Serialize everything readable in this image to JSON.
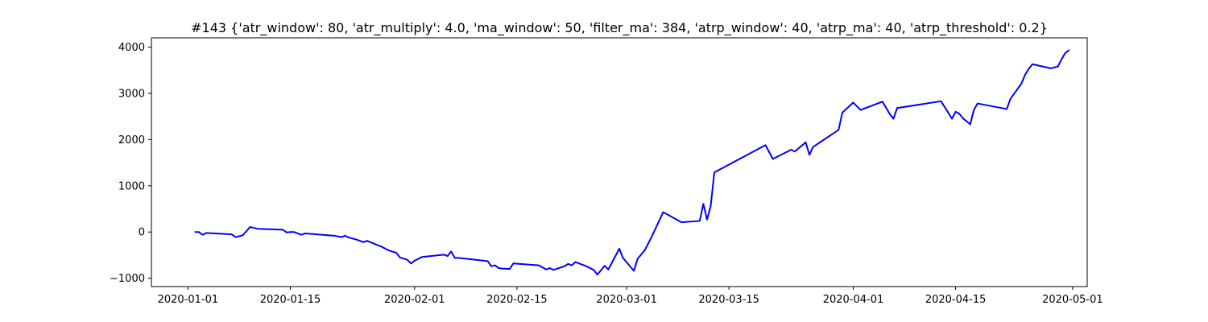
{
  "chart_data": {
    "type": "line",
    "title": "#143 {'atr_window': 80, 'atr_multiply': 4.0, 'ma_window': 50, 'filter_ma': 384, 'atrp_window': 40, 'atrp_ma': 40, 'atrp_threshold': 0.2}",
    "xlabel": "",
    "ylabel": "",
    "x_type": "date",
    "xlim": [
      "2019-12-27",
      "2020-05-03"
    ],
    "ylim": [
      -1180,
      4200
    ],
    "grid": false,
    "legend": "none",
    "x_ticks": [
      "2020-01-01",
      "2020-01-15",
      "2020-02-01",
      "2020-02-15",
      "2020-03-01",
      "2020-03-15",
      "2020-04-01",
      "2020-04-15",
      "2020-05-01"
    ],
    "y_ticks": [
      -1000,
      0,
      1000,
      2000,
      3000,
      4000
    ],
    "series": [
      {
        "color": "#0000ff",
        "points": [
          [
            "2020-01-02",
            0
          ],
          [
            "2020-01-02T12:00",
            0
          ],
          [
            "2020-01-03",
            -60
          ],
          [
            "2020-01-03T12:00",
            -20
          ],
          [
            "2020-01-07",
            -50
          ],
          [
            "2020-01-07T12:00",
            -110
          ],
          [
            "2020-01-08T12:00",
            -70
          ],
          [
            "2020-01-09T12:00",
            110
          ],
          [
            "2020-01-10T12:00",
            70
          ],
          [
            "2020-01-14",
            50
          ],
          [
            "2020-01-14T12:00",
            -10
          ],
          [
            "2020-01-15",
            0
          ],
          [
            "2020-01-15T12:00",
            0
          ],
          [
            "2020-01-16T12:00",
            -60
          ],
          [
            "2020-01-17",
            -30
          ],
          [
            "2020-01-21",
            -80
          ],
          [
            "2020-01-22",
            -110
          ],
          [
            "2020-01-22T12:00",
            -80
          ],
          [
            "2020-01-23",
            -120
          ],
          [
            "2020-01-24",
            -160
          ],
          [
            "2020-01-25",
            -220
          ],
          [
            "2020-01-25T12:00",
            -190
          ],
          [
            "2020-01-27T12:00",
            -320
          ],
          [
            "2020-01-28T12:00",
            -400
          ],
          [
            "2020-01-29T12:00",
            -450
          ],
          [
            "2020-01-30",
            -550
          ],
          [
            "2020-01-31",
            -600
          ],
          [
            "2020-01-31T12:00",
            -680
          ],
          [
            "2020-02-01",
            -620
          ],
          [
            "2020-02-02",
            -540
          ],
          [
            "2020-02-05",
            -490
          ],
          [
            "2020-02-05T12:00",
            -520
          ],
          [
            "2020-02-06",
            -420
          ],
          [
            "2020-02-06T12:00",
            -560
          ],
          [
            "2020-02-07",
            -560
          ],
          [
            "2020-02-11",
            -630
          ],
          [
            "2020-02-11T12:00",
            -740
          ],
          [
            "2020-02-12",
            -720
          ],
          [
            "2020-02-12T12:00",
            -780
          ],
          [
            "2020-02-13",
            -790
          ],
          [
            "2020-02-14",
            -800
          ],
          [
            "2020-02-14T12:00",
            -680
          ],
          [
            "2020-02-18",
            -720
          ],
          [
            "2020-02-19",
            -810
          ],
          [
            "2020-02-19T12:00",
            -780
          ],
          [
            "2020-02-20",
            -820
          ],
          [
            "2020-02-21T12:00",
            -740
          ],
          [
            "2020-02-22",
            -690
          ],
          [
            "2020-02-22T12:00",
            -720
          ],
          [
            "2020-02-23",
            -650
          ],
          [
            "2020-02-24T12:00",
            -740
          ],
          [
            "2020-02-25T12:00",
            -820
          ],
          [
            "2020-02-26",
            -920
          ],
          [
            "2020-02-27",
            -730
          ],
          [
            "2020-02-27T12:00",
            -810
          ],
          [
            "2020-02-29",
            -360
          ],
          [
            "2020-02-29T12:00",
            -560
          ],
          [
            "2020-03-02",
            -840
          ],
          [
            "2020-03-02T12:00",
            -580
          ],
          [
            "2020-03-03T12:00",
            -390
          ],
          [
            "2020-03-04T12:00",
            -80
          ],
          [
            "2020-03-06",
            430
          ],
          [
            "2020-03-08T12:00",
            210
          ],
          [
            "2020-03-11",
            240
          ],
          [
            "2020-03-11T12:00",
            610
          ],
          [
            "2020-03-12",
            270
          ],
          [
            "2020-03-12T12:00",
            560
          ],
          [
            "2020-03-13",
            1290
          ],
          [
            "2020-03-20",
            1880
          ],
          [
            "2020-03-21",
            1580
          ],
          [
            "2020-03-23T12:00",
            1780
          ],
          [
            "2020-03-24",
            1740
          ],
          [
            "2020-03-25T12:00",
            1940
          ],
          [
            "2020-03-26",
            1670
          ],
          [
            "2020-03-26T12:00",
            1840
          ],
          [
            "2020-03-30",
            2210
          ],
          [
            "2020-03-30T12:00",
            2580
          ],
          [
            "2020-04-01",
            2800
          ],
          [
            "2020-04-02",
            2640
          ],
          [
            "2020-04-05",
            2820
          ],
          [
            "2020-04-06",
            2550
          ],
          [
            "2020-04-06T12:00",
            2450
          ],
          [
            "2020-04-07",
            2680
          ],
          [
            "2020-04-13",
            2830
          ],
          [
            "2020-04-14",
            2580
          ],
          [
            "2020-04-14T12:00",
            2450
          ],
          [
            "2020-04-15",
            2600
          ],
          [
            "2020-04-15T12:00",
            2560
          ],
          [
            "2020-04-16",
            2460
          ],
          [
            "2020-04-17",
            2330
          ],
          [
            "2020-04-17T12:00",
            2640
          ],
          [
            "2020-04-18",
            2780
          ],
          [
            "2020-04-22",
            2660
          ],
          [
            "2020-04-22T12:00",
            2880
          ],
          [
            "2020-04-24",
            3210
          ],
          [
            "2020-04-24T12:00",
            3400
          ],
          [
            "2020-04-25",
            3530
          ],
          [
            "2020-04-25T12:00",
            3630
          ],
          [
            "2020-04-28",
            3540
          ],
          [
            "2020-04-29",
            3580
          ],
          [
            "2020-04-29T12:00",
            3740
          ],
          [
            "2020-04-30",
            3870
          ],
          [
            "2020-04-30T12:00",
            3930
          ]
        ]
      }
    ]
  }
}
